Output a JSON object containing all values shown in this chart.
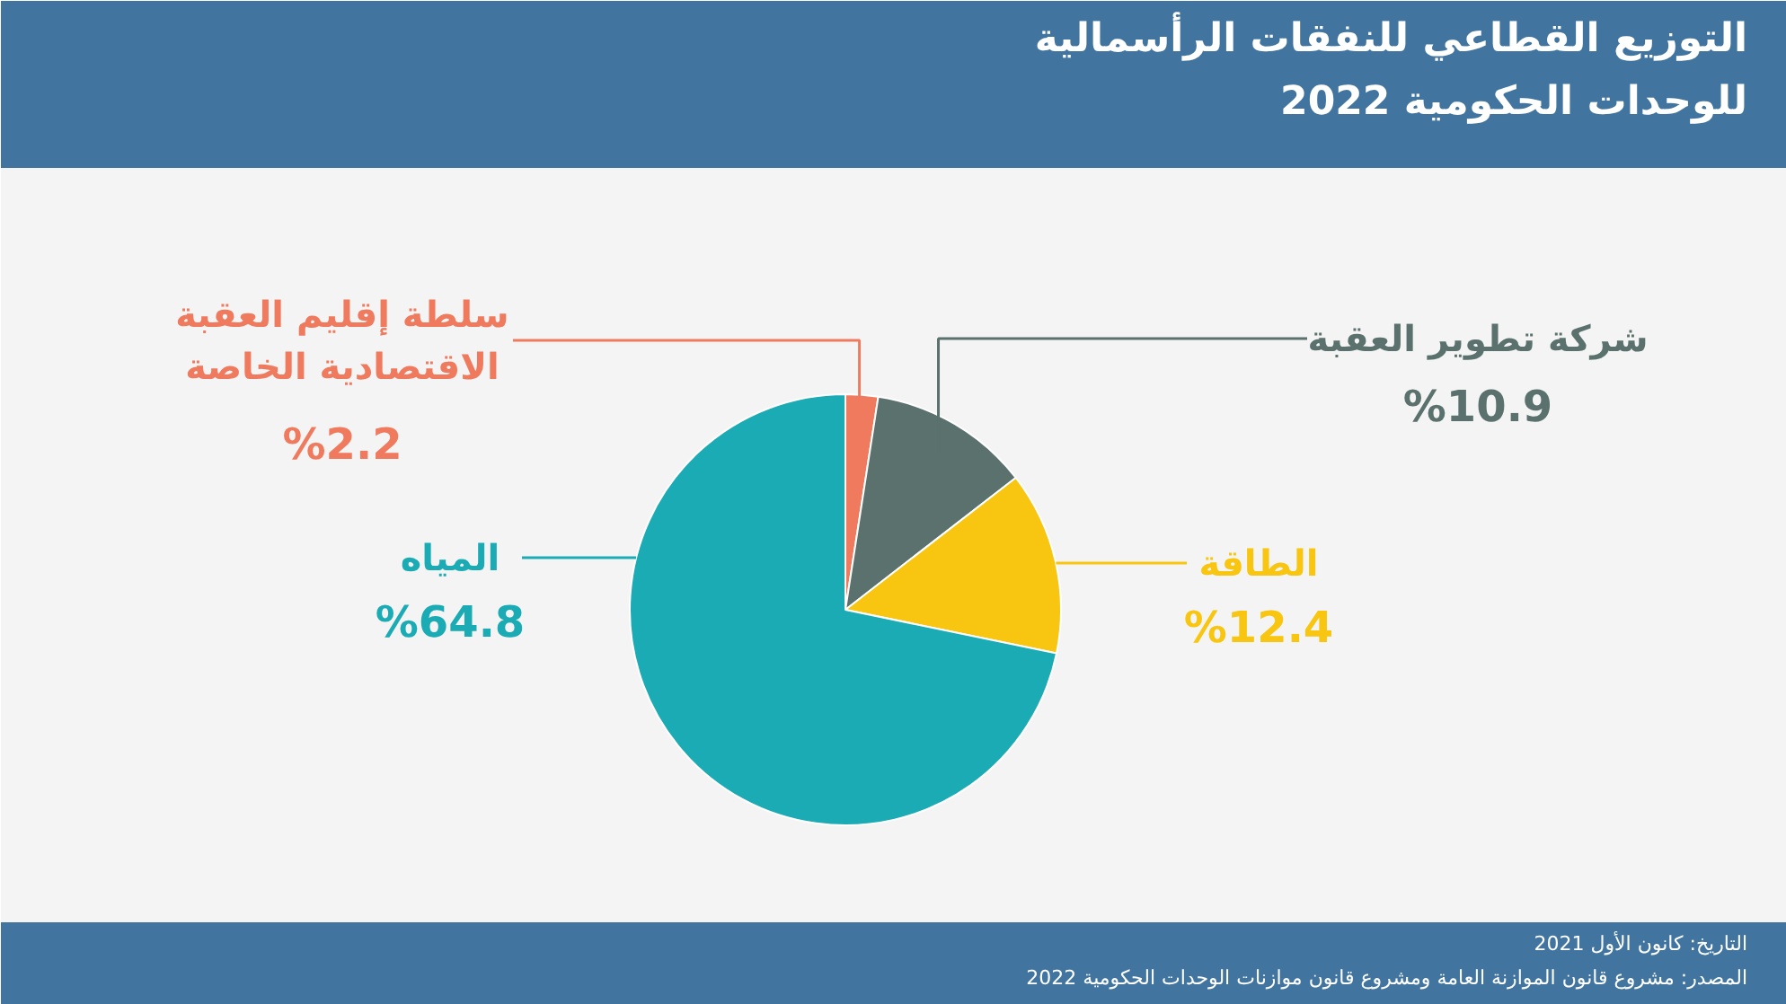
{
  "chart_data": {
    "type": "pie",
    "title": "التوزيع القطاعي للنفقات الرأسمالية\nللوحدات الحكومية 2022",
    "categories": [
      "سلطة إقليم العقبة\nالاقتصادية الخاصة",
      "شركة تطوير العقبة",
      "الطاقة",
      "المياه"
    ],
    "values": [
      2.2,
      10.9,
      12.4,
      64.8
    ],
    "colors": [
      "#f07a5e",
      "#5b716d",
      "#f8c610",
      "#1aabb5"
    ],
    "value_labels": [
      "%2.2",
      "%10.9",
      "%12.4",
      "%64.8"
    ],
    "annotations": [
      "التاريخ: كانون الأول 2021",
      "المصدر: مشروع قانون الموازنة العامة ومشروع قانون موازنات الوحدات الحكومية 2022"
    ]
  }
}
